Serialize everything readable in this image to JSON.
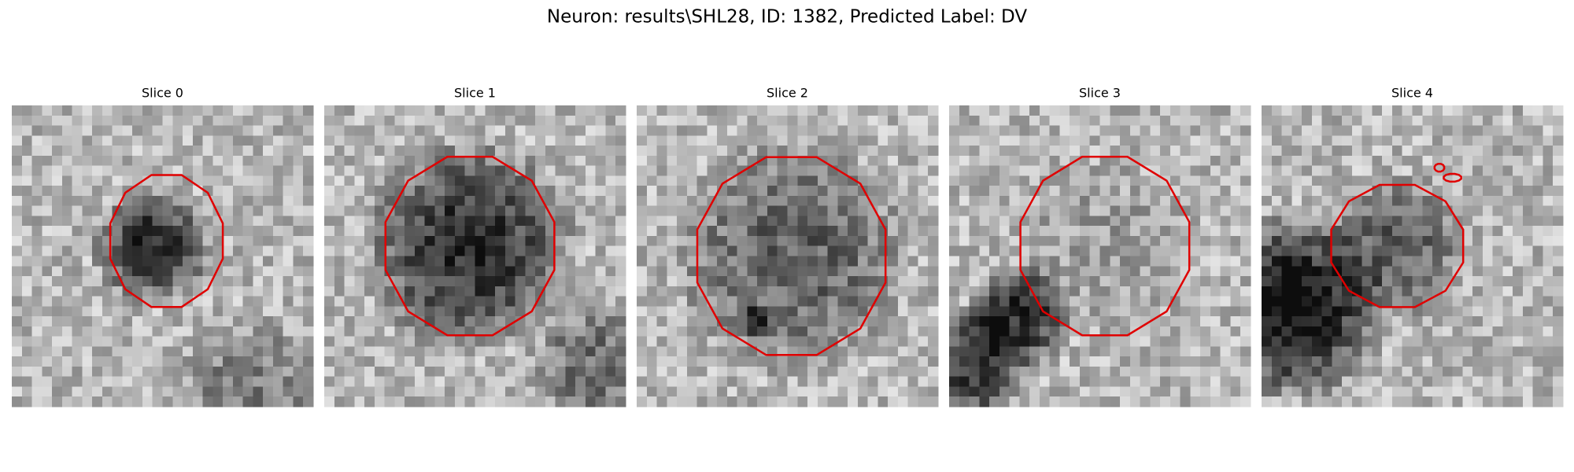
{
  "title": "Neuron: results\\SHL28, ID: 1382, Predicted Label: DV",
  "panels": [
    {
      "title": "Slice 0"
    },
    {
      "title": "Slice 1"
    },
    {
      "title": "Slice 2"
    },
    {
      "title": "Slice 3"
    },
    {
      "title": "Slice 4"
    }
  ]
}
